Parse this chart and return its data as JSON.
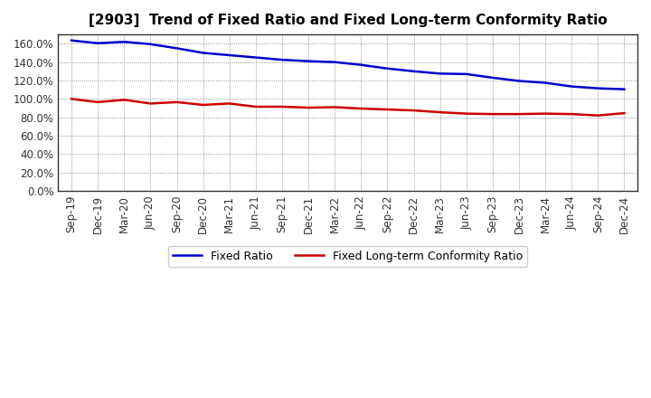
{
  "title": "[2903]  Trend of Fixed Ratio and Fixed Long-term Conformity Ratio",
  "x_labels": [
    "Sep-19",
    "Dec-19",
    "Mar-20",
    "Jun-20",
    "Sep-20",
    "Dec-20",
    "Mar-21",
    "Jun-21",
    "Sep-21",
    "Dec-21",
    "Mar-22",
    "Jun-22",
    "Sep-22",
    "Dec-22",
    "Mar-23",
    "Jun-23",
    "Sep-23",
    "Dec-23",
    "Mar-24",
    "Jun-24",
    "Sep-24",
    "Dec-24"
  ],
  "fixed_ratio": [
    163.5,
    160.5,
    162.0,
    159.5,
    155.0,
    150.0,
    147.5,
    145.0,
    142.5,
    141.0,
    140.0,
    137.0,
    133.0,
    130.0,
    127.5,
    127.0,
    123.0,
    119.5,
    117.5,
    113.5,
    111.5,
    110.5
  ],
  "fixed_lt_ratio": [
    100.0,
    96.5,
    99.0,
    95.0,
    96.5,
    93.5,
    95.0,
    91.5,
    91.5,
    90.5,
    91.0,
    89.5,
    88.5,
    87.5,
    85.5,
    84.0,
    83.5,
    83.5,
    84.0,
    83.5,
    82.0,
    84.5
  ],
  "blue_color": "#0000CC",
  "red_color": "#CC0000",
  "background_color": "#FFFFFF",
  "plot_bg_color": "#FFFFFF",
  "grid_color": "#555555",
  "ylim": [
    0,
    170
  ],
  "yticks": [
    0,
    20,
    40,
    60,
    80,
    100,
    120,
    140,
    160
  ],
  "legend_labels": [
    "Fixed Ratio",
    "Fixed Long-term Conformity Ratio"
  ],
  "line_width": 1.8,
  "title_fontsize": 11,
  "tick_fontsize": 8.5
}
